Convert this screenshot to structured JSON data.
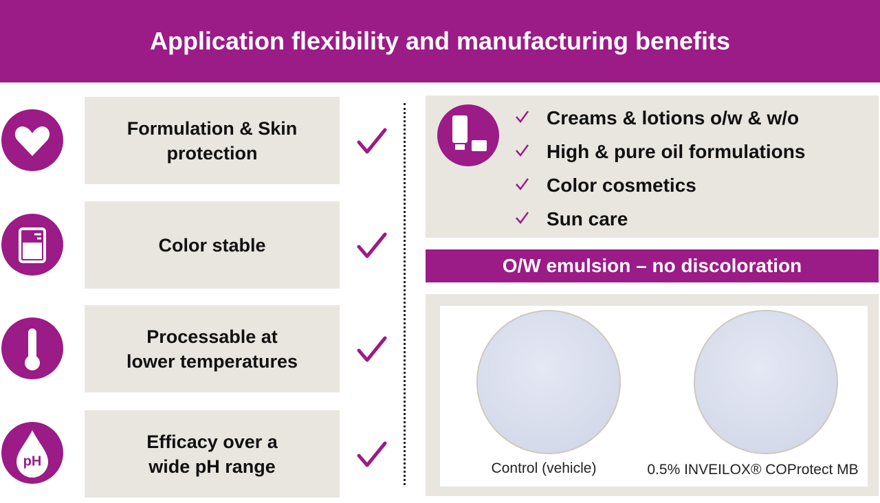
{
  "header": {
    "title": "Application flexibility and manufacturing benefits"
  },
  "benefits": [
    {
      "lines": [
        "Formulation & Skin",
        "protection"
      ]
    },
    {
      "lines": [
        "Color stable"
      ]
    },
    {
      "lines": [
        "Processable at",
        "lower temperatures"
      ]
    },
    {
      "lines": [
        "Efficacy over a",
        "wide pH range"
      ],
      "icon_text": "pH"
    }
  ],
  "applications": [
    "Creams & lotions o/w & w/o",
    "High & pure oil formulations",
    "Color cosmetics",
    "Sun care"
  ],
  "emulsion": {
    "title": "O/W emulsion – no discoloration",
    "captions": [
      "Control (vehicle)",
      "0.5% INVEILOX® COProtect MB"
    ]
  }
}
